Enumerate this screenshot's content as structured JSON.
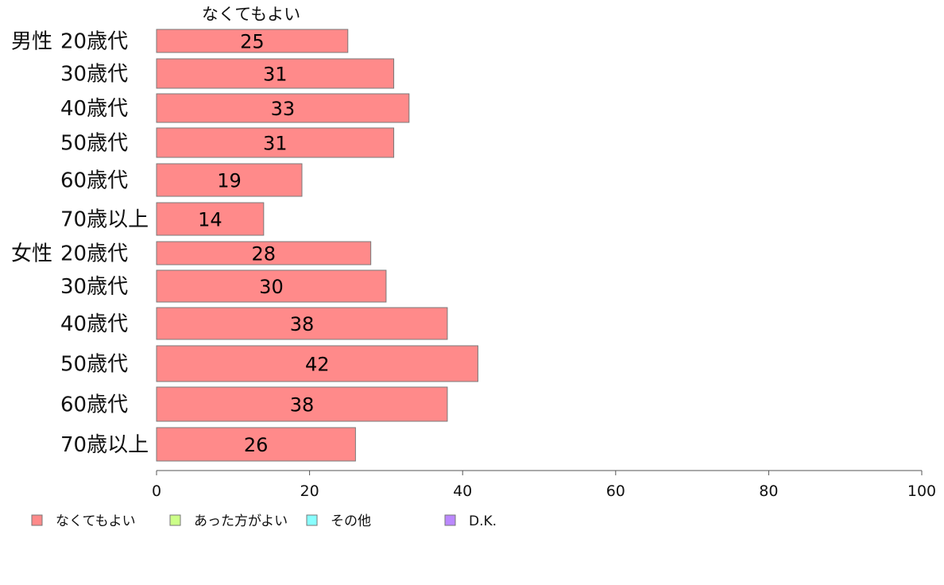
{
  "chart_data": {
    "type": "bar",
    "orientation": "horizontal",
    "series_title": "なくてもよい",
    "groups": [
      {
        "label": "男性",
        "first_index": 0
      },
      {
        "label": "女性",
        "first_index": 6
      }
    ],
    "categories": [
      "20歳代",
      "30歳代",
      "40歳代",
      "50歳代",
      "60歳代",
      "70歳以上",
      "20歳代",
      "30歳代",
      "40歳代",
      "50歳代",
      "60歳代",
      "70歳以上"
    ],
    "series": [
      {
        "name": "なくてもよい",
        "color": "#ff8a8a",
        "values": [
          25,
          31,
          33,
          31,
          19,
          14,
          28,
          30,
          38,
          42,
          38,
          26
        ]
      }
    ],
    "xlim": [
      0,
      100
    ],
    "xticks": [
      0,
      20,
      40,
      60,
      80,
      100
    ],
    "grid": false,
    "legend_position": "bottom-left",
    "legend": [
      {
        "label": "なくてもよい",
        "color": "#ff8a8a"
      },
      {
        "label": "あった方がよい",
        "color": "#ccff88"
      },
      {
        "label": "その他",
        "color": "#88ffff"
      },
      {
        "label": "D.K.",
        "color": "#bb88ff"
      }
    ]
  }
}
